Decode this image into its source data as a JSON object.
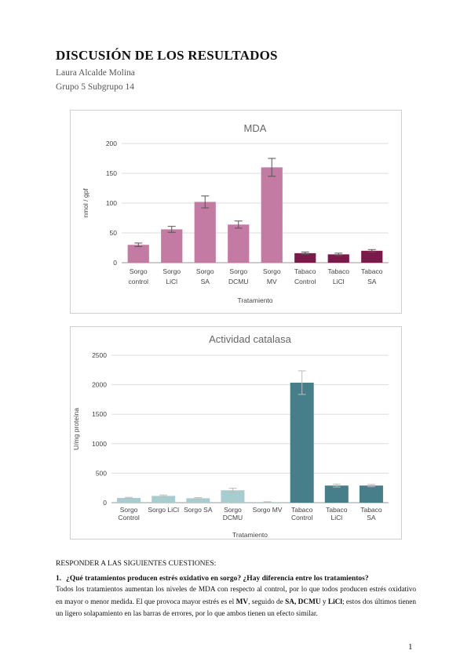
{
  "document": {
    "title": "DISCUSIÓN DE LOS RESULTADOS",
    "author": "Laura Alcalde Molina",
    "group": "Grupo 5 Subgrupo 14",
    "section_heading": "RESPONDER A LAS SIGUIENTES CUESTIONES:",
    "question_number": "1.",
    "question_text": "¿Qué tratamientos producen estrés oxidativo en sorgo? ¿Hay diferencia entre los tratamientos?",
    "answer_parts": [
      "Todos los tratamientos aumentan los niveles de MDA con respecto al control, por lo que todos producen estrés oxidativo en mayor o menor medida. El que provoca mayor estrés es el ",
      "MV",
      ", seguido de ",
      "SA, DCMU",
      " y ",
      "LiCl",
      "; estos dos últimos tienen un ligero solapamiento en las barras de errores, por lo que ambos tienen un efecto similar."
    ],
    "page_number": "1"
  },
  "chart_data": [
    {
      "type": "bar",
      "title": "MDA",
      "xlabel": "Tratamiento",
      "ylabel": "nmol / gpf",
      "ylim": [
        0,
        200
      ],
      "yticks": [
        "0",
        "50",
        "100",
        "150",
        "200"
      ],
      "categories": [
        [
          "Sorgo",
          "control"
        ],
        [
          "Sorgo",
          "LiCl"
        ],
        [
          "Sorgo",
          "SA"
        ],
        [
          "Sorgo",
          "DCMU"
        ],
        [
          "Sorgo",
          "MV"
        ],
        [
          "Tabaco",
          "Control"
        ],
        [
          "Tabaco",
          "LiCl"
        ],
        [
          "Tabaco",
          "SA"
        ]
      ],
      "values": [
        30,
        56,
        102,
        64,
        160,
        16,
        14,
        20
      ],
      "errors": [
        3,
        5,
        10,
        6,
        15,
        2,
        2,
        2
      ],
      "colors": [
        "#c47ba3",
        "#c47ba3",
        "#c47ba3",
        "#c47ba3",
        "#c47ba3",
        "#7b1a4a",
        "#7b1a4a",
        "#7b1a4a"
      ],
      "grid": true
    },
    {
      "type": "bar",
      "title": "Actividad catalasa",
      "xlabel": "Tratamiento",
      "ylabel": "U/mg proteína",
      "ylim": [
        0,
        2500
      ],
      "yticks": [
        "0",
        "500",
        "1000",
        "1500",
        "2000",
        "2500"
      ],
      "categories": [
        [
          "Sorgo",
          "Control"
        ],
        [
          "Sorgo LiCl"
        ],
        [
          "Sorgo SA"
        ],
        [
          "Sorgo",
          "DCMU"
        ],
        [
          "Sorgo MV"
        ],
        [
          "Tabaco",
          "Control"
        ],
        [
          "Tabaco",
          "LiCl"
        ],
        [
          "Tabaco",
          "SA"
        ]
      ],
      "values": [
        80,
        115,
        75,
        210,
        10,
        2035,
        290,
        290
      ],
      "errors": [
        10,
        15,
        10,
        35,
        5,
        200,
        25,
        20
      ],
      "colors": [
        "#a8cdd1",
        "#a8cdd1",
        "#a8cdd1",
        "#a8cdd1",
        "#a8cdd1",
        "#467f8a",
        "#467f8a",
        "#467f8a"
      ],
      "grid": true
    }
  ]
}
